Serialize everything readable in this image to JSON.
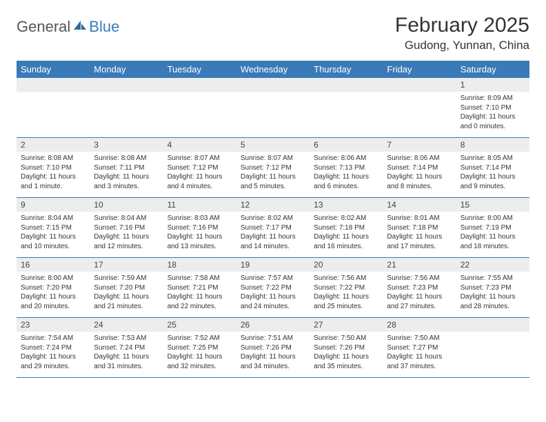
{
  "logo": {
    "general": "General",
    "blue": "Blue"
  },
  "title": "February 2025",
  "location": "Gudong, Yunnan, China",
  "colors": {
    "header_bg": "#3a7ab8",
    "header_text": "#ffffff",
    "daynum_bg": "#eceded",
    "border": "#3a7ab8",
    "text": "#333333"
  },
  "day_headers": [
    "Sunday",
    "Monday",
    "Tuesday",
    "Wednesday",
    "Thursday",
    "Friday",
    "Saturday"
  ],
  "weeks": [
    [
      {
        "empty": true
      },
      {
        "empty": true
      },
      {
        "empty": true
      },
      {
        "empty": true
      },
      {
        "empty": true
      },
      {
        "empty": true
      },
      {
        "day": "1",
        "sunrise": "Sunrise: 8:09 AM",
        "sunset": "Sunset: 7:10 PM",
        "daylight": "Daylight: 11 hours and 0 minutes."
      }
    ],
    [
      {
        "day": "2",
        "sunrise": "Sunrise: 8:08 AM",
        "sunset": "Sunset: 7:10 PM",
        "daylight": "Daylight: 11 hours and 1 minute."
      },
      {
        "day": "3",
        "sunrise": "Sunrise: 8:08 AM",
        "sunset": "Sunset: 7:11 PM",
        "daylight": "Daylight: 11 hours and 3 minutes."
      },
      {
        "day": "4",
        "sunrise": "Sunrise: 8:07 AM",
        "sunset": "Sunset: 7:12 PM",
        "daylight": "Daylight: 11 hours and 4 minutes."
      },
      {
        "day": "5",
        "sunrise": "Sunrise: 8:07 AM",
        "sunset": "Sunset: 7:12 PM",
        "daylight": "Daylight: 11 hours and 5 minutes."
      },
      {
        "day": "6",
        "sunrise": "Sunrise: 8:06 AM",
        "sunset": "Sunset: 7:13 PM",
        "daylight": "Daylight: 11 hours and 6 minutes."
      },
      {
        "day": "7",
        "sunrise": "Sunrise: 8:06 AM",
        "sunset": "Sunset: 7:14 PM",
        "daylight": "Daylight: 11 hours and 8 minutes."
      },
      {
        "day": "8",
        "sunrise": "Sunrise: 8:05 AM",
        "sunset": "Sunset: 7:14 PM",
        "daylight": "Daylight: 11 hours and 9 minutes."
      }
    ],
    [
      {
        "day": "9",
        "sunrise": "Sunrise: 8:04 AM",
        "sunset": "Sunset: 7:15 PM",
        "daylight": "Daylight: 11 hours and 10 minutes."
      },
      {
        "day": "10",
        "sunrise": "Sunrise: 8:04 AM",
        "sunset": "Sunset: 7:16 PM",
        "daylight": "Daylight: 11 hours and 12 minutes."
      },
      {
        "day": "11",
        "sunrise": "Sunrise: 8:03 AM",
        "sunset": "Sunset: 7:16 PM",
        "daylight": "Daylight: 11 hours and 13 minutes."
      },
      {
        "day": "12",
        "sunrise": "Sunrise: 8:02 AM",
        "sunset": "Sunset: 7:17 PM",
        "daylight": "Daylight: 11 hours and 14 minutes."
      },
      {
        "day": "13",
        "sunrise": "Sunrise: 8:02 AM",
        "sunset": "Sunset: 7:18 PM",
        "daylight": "Daylight: 11 hours and 16 minutes."
      },
      {
        "day": "14",
        "sunrise": "Sunrise: 8:01 AM",
        "sunset": "Sunset: 7:18 PM",
        "daylight": "Daylight: 11 hours and 17 minutes."
      },
      {
        "day": "15",
        "sunrise": "Sunrise: 8:00 AM",
        "sunset": "Sunset: 7:19 PM",
        "daylight": "Daylight: 11 hours and 18 minutes."
      }
    ],
    [
      {
        "day": "16",
        "sunrise": "Sunrise: 8:00 AM",
        "sunset": "Sunset: 7:20 PM",
        "daylight": "Daylight: 11 hours and 20 minutes."
      },
      {
        "day": "17",
        "sunrise": "Sunrise: 7:59 AM",
        "sunset": "Sunset: 7:20 PM",
        "daylight": "Daylight: 11 hours and 21 minutes."
      },
      {
        "day": "18",
        "sunrise": "Sunrise: 7:58 AM",
        "sunset": "Sunset: 7:21 PM",
        "daylight": "Daylight: 11 hours and 22 minutes."
      },
      {
        "day": "19",
        "sunrise": "Sunrise: 7:57 AM",
        "sunset": "Sunset: 7:22 PM",
        "daylight": "Daylight: 11 hours and 24 minutes."
      },
      {
        "day": "20",
        "sunrise": "Sunrise: 7:56 AM",
        "sunset": "Sunset: 7:22 PM",
        "daylight": "Daylight: 11 hours and 25 minutes."
      },
      {
        "day": "21",
        "sunrise": "Sunrise: 7:56 AM",
        "sunset": "Sunset: 7:23 PM",
        "daylight": "Daylight: 11 hours and 27 minutes."
      },
      {
        "day": "22",
        "sunrise": "Sunrise: 7:55 AM",
        "sunset": "Sunset: 7:23 PM",
        "daylight": "Daylight: 11 hours and 28 minutes."
      }
    ],
    [
      {
        "day": "23",
        "sunrise": "Sunrise: 7:54 AM",
        "sunset": "Sunset: 7:24 PM",
        "daylight": "Daylight: 11 hours and 29 minutes."
      },
      {
        "day": "24",
        "sunrise": "Sunrise: 7:53 AM",
        "sunset": "Sunset: 7:24 PM",
        "daylight": "Daylight: 11 hours and 31 minutes."
      },
      {
        "day": "25",
        "sunrise": "Sunrise: 7:52 AM",
        "sunset": "Sunset: 7:25 PM",
        "daylight": "Daylight: 11 hours and 32 minutes."
      },
      {
        "day": "26",
        "sunrise": "Sunrise: 7:51 AM",
        "sunset": "Sunset: 7:26 PM",
        "daylight": "Daylight: 11 hours and 34 minutes."
      },
      {
        "day": "27",
        "sunrise": "Sunrise: 7:50 AM",
        "sunset": "Sunset: 7:26 PM",
        "daylight": "Daylight: 11 hours and 35 minutes."
      },
      {
        "day": "28",
        "sunrise": "Sunrise: 7:50 AM",
        "sunset": "Sunset: 7:27 PM",
        "daylight": "Daylight: 11 hours and 37 minutes."
      },
      {
        "empty": true
      }
    ]
  ]
}
